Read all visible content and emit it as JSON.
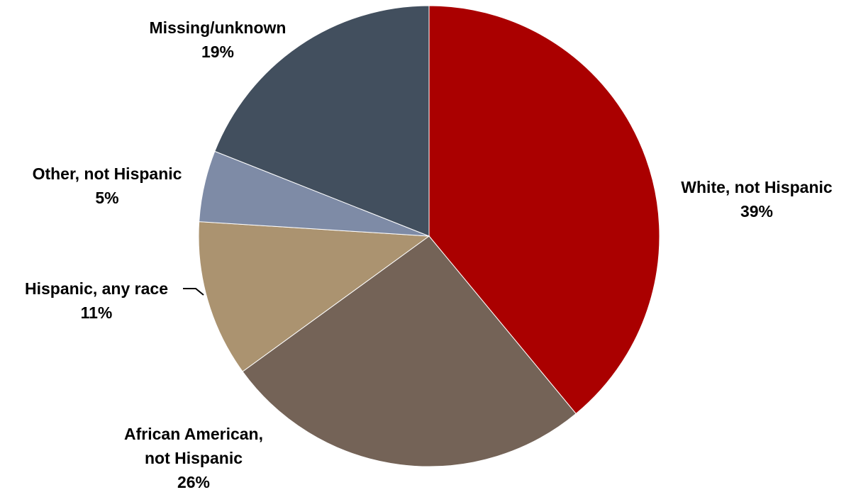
{
  "chart_data": {
    "type": "pie",
    "title": "",
    "start_angle_deg": 0,
    "direction": "clockwise",
    "slices": [
      {
        "name": "White, not Hispanic",
        "label_lines": [
          "White, not Hispanic"
        ],
        "value": 39,
        "value_label": "39%",
        "color": "#AA0000"
      },
      {
        "name": "African American, not Hispanic",
        "label_lines": [
          "African American,",
          "not Hispanic"
        ],
        "value": 26,
        "value_label": "26%",
        "color": "#746357"
      },
      {
        "name": "Hispanic, any race",
        "label_lines": [
          "Hispanic, any  race"
        ],
        "value": 11,
        "value_label": "11%",
        "color": "#AB9370"
      },
      {
        "name": "Other, not Hispanic",
        "label_lines": [
          "Other, not Hispanic"
        ],
        "value": 5,
        "value_label": "5%",
        "color": "#7E8BA6"
      },
      {
        "name": "Missing/unknown",
        "label_lines": [
          "Missing/unknown"
        ],
        "value": 19,
        "value_label": "19%",
        "color": "#424F5E"
      }
    ]
  }
}
